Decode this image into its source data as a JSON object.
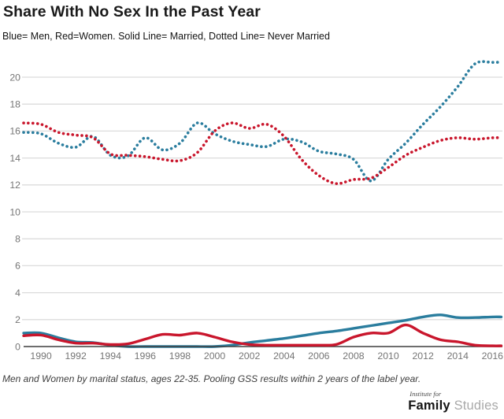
{
  "header": {
    "title": "Share With No Sex In the Past Year",
    "subtitle": "Blue= Men, Red=Women. Solid Line= Married, Dotted Line= Never Married"
  },
  "chart_data": {
    "type": "line",
    "title": "Share With No Sex In the Past Year",
    "subtitle": "Blue= Men, Red=Women. Solid Line= Married, Dotted Line= Never Married",
    "xlabel": "",
    "ylabel": "",
    "x": [
      1989,
      1990,
      1991,
      1992,
      1993,
      1994,
      1995,
      1996,
      1997,
      1998,
      1999,
      2000,
      2001,
      2002,
      2003,
      2004,
      2005,
      2006,
      2007,
      2008,
      2009,
      2010,
      2011,
      2012,
      2013,
      2014,
      2015,
      2016
    ],
    "series": [
      {
        "name": "Never Married Men",
        "color": "#2a7d9e",
        "style": "dotted",
        "values": [
          15.9,
          15.8,
          15.1,
          14.8,
          15.6,
          14.2,
          14.15,
          15.5,
          14.6,
          15.1,
          16.6,
          15.8,
          15.25,
          15.0,
          14.85,
          15.4,
          15.2,
          14.5,
          14.3,
          13.9,
          12.3,
          13.9,
          15.1,
          16.5,
          17.8,
          19.3,
          21.0,
          21.1
        ]
      },
      {
        "name": "Never Married Women",
        "color": "#c9162c",
        "style": "dotted",
        "values": [
          16.6,
          16.5,
          15.9,
          15.7,
          15.5,
          14.3,
          14.2,
          14.1,
          13.9,
          13.8,
          14.4,
          16.0,
          16.6,
          16.2,
          16.5,
          15.6,
          13.9,
          12.7,
          12.1,
          12.4,
          12.5,
          13.3,
          14.2,
          14.8,
          15.3,
          15.5,
          15.4,
          15.5
        ]
      },
      {
        "name": "Married Men",
        "color": "#2a7d9e",
        "style": "solid",
        "values": [
          1.0,
          1.0,
          0.65,
          0.35,
          0.3,
          0.1,
          0.0,
          0.0,
          0.0,
          0.0,
          0.0,
          0.0,
          0.1,
          0.3,
          0.45,
          0.6,
          0.8,
          1.0,
          1.15,
          1.35,
          1.55,
          1.75,
          1.95,
          2.2,
          2.35,
          2.15,
          2.15,
          2.2
        ]
      },
      {
        "name": "Married Women",
        "color": "#c9162c",
        "style": "solid",
        "values": [
          0.8,
          0.85,
          0.5,
          0.25,
          0.25,
          0.15,
          0.2,
          0.55,
          0.9,
          0.85,
          1.0,
          0.7,
          0.35,
          0.15,
          0.1,
          0.1,
          0.1,
          0.1,
          0.15,
          0.7,
          1.0,
          1.0,
          1.6,
          1.0,
          0.5,
          0.35,
          0.1,
          0.05
        ]
      }
    ],
    "xticks": [
      1990,
      1992,
      1994,
      1996,
      1998,
      2000,
      2002,
      2004,
      2006,
      2008,
      2010,
      2012,
      2014,
      2016
    ],
    "yticks": [
      0,
      2,
      4,
      6,
      8,
      10,
      12,
      14,
      16,
      18,
      20
    ],
    "ylim": [
      0,
      21.5
    ],
    "xlim": [
      1989,
      2016.5
    ],
    "grid": "horizontal",
    "legend_position": "none"
  },
  "footnote": "Men and Women by marital status, ages 22-35. Pooling GSS results within 2 years of the label year.",
  "logo": {
    "top": "Institute for",
    "brand_bold": "Family",
    "brand_light": "Studies"
  },
  "colors": {
    "blue": "#2a7d9e",
    "red": "#c9162c",
    "grid": "#dcdcdc",
    "axis": "#3f3f3f",
    "tick_label": "#757575",
    "background": "#ffffff"
  }
}
